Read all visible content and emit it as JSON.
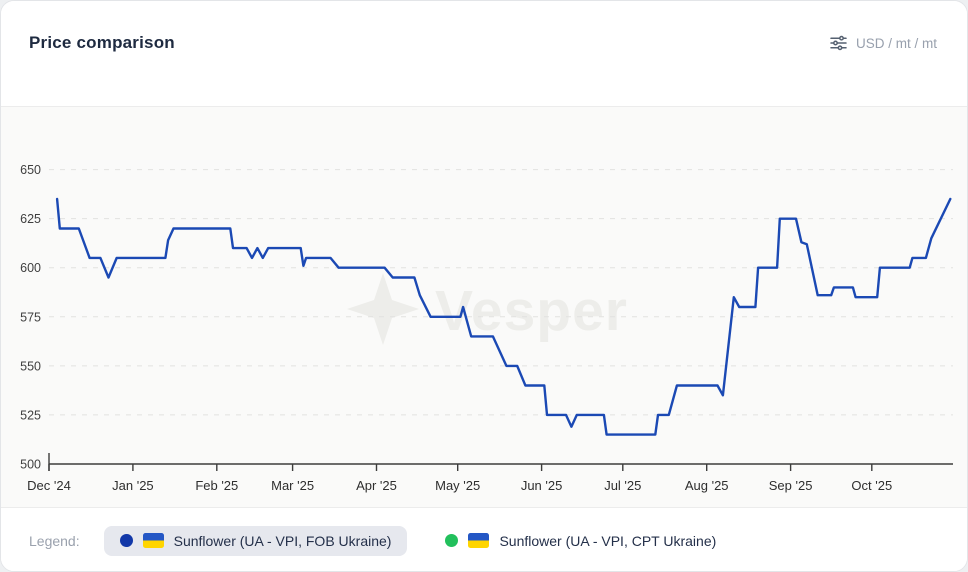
{
  "header": {
    "title": "Price comparison",
    "unit_label": "USD / mt / mt"
  },
  "watermark": {
    "text": "Vesper"
  },
  "legend": {
    "label": "Legend:",
    "items": [
      {
        "label": "Sunflower (UA - VPI, FOB Ukraine)",
        "dot_color": "#1238a8",
        "selected": true
      },
      {
        "label": "Sunflower (UA - VPI, CPT Ukraine)",
        "dot_color": "#22c05c",
        "selected": false
      }
    ]
  },
  "chart_data": {
    "type": "line",
    "line_shape": "step",
    "title": "Price comparison",
    "ylabel": "USD / mt",
    "ylim": [
      500,
      650
    ],
    "yticks": [
      500,
      525,
      550,
      575,
      600,
      625,
      650
    ],
    "grid": "horizontal-dashed",
    "legend_position": "bottom",
    "xlim": [
      "2024-12-01",
      "2025-10-31"
    ],
    "xticks": [
      {
        "label": "Dec '24",
        "date": "2024-12-01"
      },
      {
        "label": "Jan '25",
        "date": "2025-01-01"
      },
      {
        "label": "Feb '25",
        "date": "2025-02-01"
      },
      {
        "label": "Mar '25",
        "date": "2025-03-01"
      },
      {
        "label": "Apr '25",
        "date": "2025-04-01"
      },
      {
        "label": "May '25",
        "date": "2025-05-01"
      },
      {
        "label": "Jun '25",
        "date": "2025-06-01"
      },
      {
        "label": "Jul '25",
        "date": "2025-07-01"
      },
      {
        "label": "Aug '25",
        "date": "2025-08-01"
      },
      {
        "label": "Sep '25",
        "date": "2025-09-01"
      },
      {
        "label": "Oct '25",
        "date": "2025-10-01"
      }
    ],
    "series": [
      {
        "name": "Sunflower (UA - VPI, FOB Ukraine)",
        "color": "#1b49b4",
        "points": [
          [
            "2024-12-04",
            635
          ],
          [
            "2024-12-05",
            620
          ],
          [
            "2024-12-12",
            620
          ],
          [
            "2024-12-16",
            605
          ],
          [
            "2024-12-20",
            605
          ],
          [
            "2024-12-23",
            595
          ],
          [
            "2024-12-26",
            605
          ],
          [
            "2025-01-13",
            605
          ],
          [
            "2025-01-14",
            614
          ],
          [
            "2025-01-16",
            620
          ],
          [
            "2025-02-06",
            620
          ],
          [
            "2025-02-07",
            610
          ],
          [
            "2025-02-12",
            610
          ],
          [
            "2025-02-14",
            605
          ],
          [
            "2025-02-16",
            610
          ],
          [
            "2025-02-18",
            605
          ],
          [
            "2025-02-20",
            610
          ],
          [
            "2025-03-04",
            610
          ],
          [
            "2025-03-05",
            601
          ],
          [
            "2025-03-06",
            605
          ],
          [
            "2025-03-15",
            605
          ],
          [
            "2025-03-18",
            600
          ],
          [
            "2025-04-04",
            600
          ],
          [
            "2025-04-07",
            595
          ],
          [
            "2025-04-15",
            595
          ],
          [
            "2025-04-17",
            586
          ],
          [
            "2025-04-21",
            575
          ],
          [
            "2025-05-02",
            575
          ],
          [
            "2025-05-03",
            580
          ],
          [
            "2025-05-06",
            565
          ],
          [
            "2025-05-14",
            565
          ],
          [
            "2025-05-19",
            550
          ],
          [
            "2025-05-23",
            550
          ],
          [
            "2025-05-26",
            540
          ],
          [
            "2025-06-02",
            540
          ],
          [
            "2025-06-03",
            525
          ],
          [
            "2025-06-10",
            525
          ],
          [
            "2025-06-12",
            519
          ],
          [
            "2025-06-14",
            525
          ],
          [
            "2025-06-24",
            525
          ],
          [
            "2025-06-25",
            515
          ],
          [
            "2025-07-13",
            515
          ],
          [
            "2025-07-14",
            525
          ],
          [
            "2025-07-18",
            525
          ],
          [
            "2025-07-21",
            540
          ],
          [
            "2025-08-05",
            540
          ],
          [
            "2025-08-07",
            535
          ],
          [
            "2025-08-11",
            585
          ],
          [
            "2025-08-13",
            580
          ],
          [
            "2025-08-19",
            580
          ],
          [
            "2025-08-20",
            600
          ],
          [
            "2025-08-27",
            600
          ],
          [
            "2025-08-28",
            625
          ],
          [
            "2025-09-03",
            625
          ],
          [
            "2025-09-05",
            613
          ],
          [
            "2025-09-07",
            612
          ],
          [
            "2025-09-11",
            586
          ],
          [
            "2025-09-16",
            586
          ],
          [
            "2025-09-17",
            590
          ],
          [
            "2025-09-24",
            590
          ],
          [
            "2025-09-25",
            585
          ],
          [
            "2025-10-03",
            585
          ],
          [
            "2025-10-04",
            600
          ],
          [
            "2025-10-15",
            600
          ],
          [
            "2025-10-16",
            605
          ],
          [
            "2025-10-21",
            605
          ],
          [
            "2025-10-23",
            615
          ],
          [
            "2025-10-30",
            635
          ]
        ]
      },
      {
        "name": "Sunflower (UA - VPI, CPT Ukraine)",
        "color": "#22c05c",
        "points": []
      }
    ]
  }
}
